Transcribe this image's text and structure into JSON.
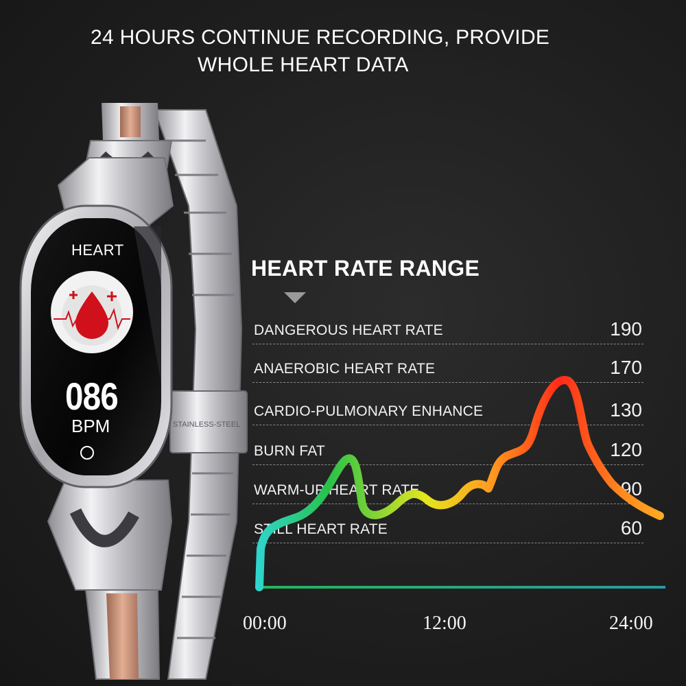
{
  "headline": {
    "line1": "24 HOURS CONTINUE RECORDING, PROVIDE",
    "line2": "WHOLE HEART DATA"
  },
  "watch": {
    "screen_title": "HEART",
    "bpm_value": "086",
    "bpm_unit": "BPM",
    "clasp_engraving": "STAINLESS-STEEL",
    "icon": "heart-blood-drop-icon",
    "colors": {
      "drop": "#d0101a",
      "band_silver": "#cfcfd3",
      "band_rose": "#c78a6e"
    }
  },
  "range": {
    "title": "HEART RATE RANGE",
    "indicator_icon": "triangle-down-icon",
    "rows": [
      {
        "label": "DANGEROUS HEART RATE",
        "value": "190"
      },
      {
        "label": "ANAEROBIC HEART RATE",
        "value": "170"
      },
      {
        "label": "CARDIO-PULMONARY ENHANCE",
        "value": "130"
      },
      {
        "label": "BURN FAT",
        "value": "120"
      },
      {
        "label": "WARM-UP HEART RATE",
        "value": "90"
      },
      {
        "label": "STILL HEART RATE",
        "value": "60"
      }
    ]
  },
  "chart_data": {
    "type": "line",
    "x_ticks": [
      "00:00",
      "12:00",
      "24:00"
    ],
    "colors": [
      "#2fd6d0",
      "#28c24a",
      "#e6e61e",
      "#ff9a1e",
      "#ff2a1a"
    ]
  }
}
